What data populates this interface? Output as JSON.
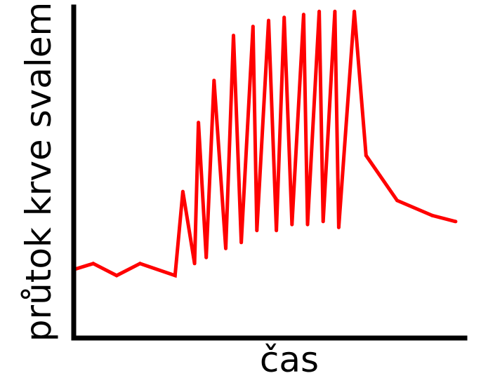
{
  "chart_data": {
    "type": "line",
    "title": "",
    "xlabel": "čas",
    "ylabel": "průtok krve svalem",
    "grid": false,
    "legend": "none",
    "xlim": [
      0,
      100
    ],
    "ylim": [
      0,
      100
    ],
    "series": [
      {
        "color": "#ff0000",
        "points": [
          {
            "x": 0,
            "y": 13
          },
          {
            "x": 5,
            "y": 15
          },
          {
            "x": 11,
            "y": 11
          },
          {
            "x": 17,
            "y": 15
          },
          {
            "x": 26,
            "y": 11
          },
          {
            "x": 28,
            "y": 39
          },
          {
            "x": 31,
            "y": 15
          },
          {
            "x": 32,
            "y": 62
          },
          {
            "x": 34,
            "y": 17
          },
          {
            "x": 36,
            "y": 76
          },
          {
            "x": 39,
            "y": 20
          },
          {
            "x": 41,
            "y": 91
          },
          {
            "x": 43,
            "y": 22
          },
          {
            "x": 46,
            "y": 94
          },
          {
            "x": 47,
            "y": 26
          },
          {
            "x": 50,
            "y": 96
          },
          {
            "x": 52,
            "y": 26
          },
          {
            "x": 54,
            "y": 97
          },
          {
            "x": 56,
            "y": 28
          },
          {
            "x": 59,
            "y": 98
          },
          {
            "x": 60,
            "y": 28
          },
          {
            "x": 63,
            "y": 99
          },
          {
            "x": 64,
            "y": 29
          },
          {
            "x": 67,
            "y": 99
          },
          {
            "x": 68,
            "y": 27
          },
          {
            "x": 72,
            "y": 99
          },
          {
            "x": 75,
            "y": 51
          },
          {
            "x": 83,
            "y": 36
          },
          {
            "x": 92,
            "y": 31
          },
          {
            "x": 98,
            "y": 29
          }
        ]
      }
    ]
  }
}
